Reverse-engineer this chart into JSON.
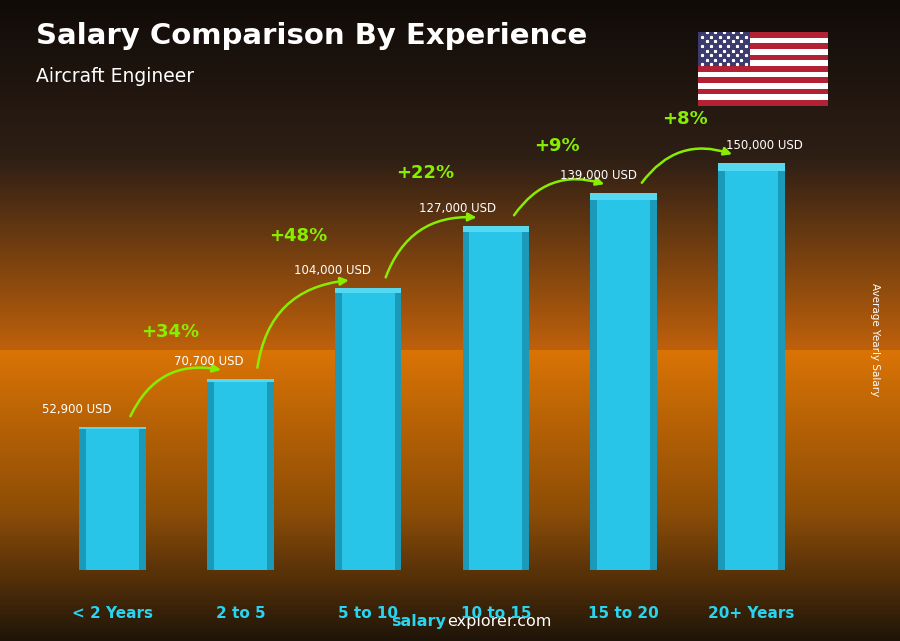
{
  "categories": [
    "< 2 Years",
    "2 to 5",
    "5 to 10",
    "10 to 15",
    "15 to 20",
    "20+ Years"
  ],
  "values": [
    52900,
    70700,
    104000,
    127000,
    139000,
    150000
  ],
  "value_labels": [
    "52,900 USD",
    "70,700 USD",
    "104,000 USD",
    "127,000 USD",
    "139,000 USD",
    "150,000 USD"
  ],
  "pct_labels": [
    "+34%",
    "+48%",
    "+22%",
    "+9%",
    "+8%"
  ],
  "bar_color_main": "#29c5e8",
  "bar_color_left": "#1a9ab8",
  "bar_color_right": "#1a9ab8",
  "bar_color_top": "#55d8f0",
  "title": "Salary Comparison By Experience",
  "subtitle": "Aircraft Engineer",
  "ylabel": "Average Yearly Salary",
  "pct_color": "#88ee00",
  "xlabel_color": "#29d4f0",
  "value_label_color": "#ffffff",
  "title_color": "#ffffff",
  "subtitle_color": "#ffffff",
  "footer_salary_color": "#29d4f0",
  "footer_explorer_color": "#ffffff",
  "ylim": 170000
}
